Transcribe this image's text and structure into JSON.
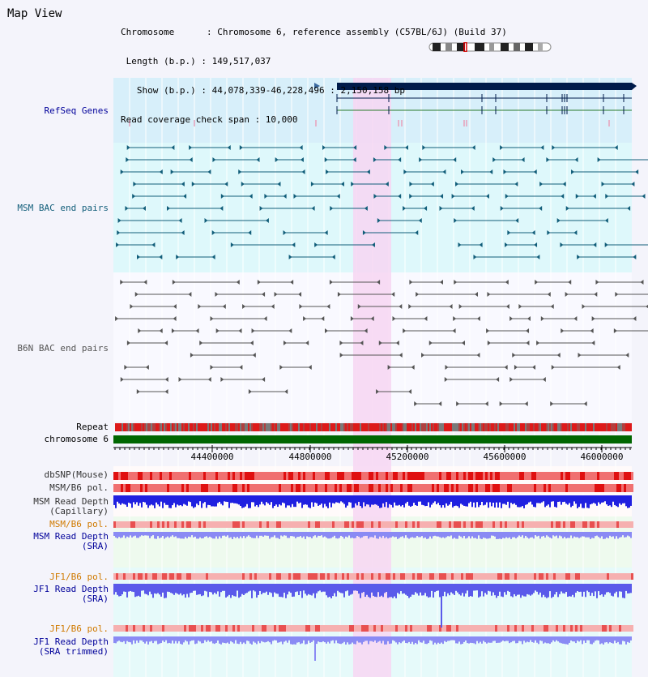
{
  "view_title": "Map View",
  "info": {
    "lines": [
      "Chromosome      : Chromosome 6, reference assembly (C57BL/6J) (Build 37)",
      " Length (b.p.) : 149,517,037",
      "   Show (b.p.) : 44,078,339-46,228,496 : 2,150,158 bp",
      "Read coverage check span : 10,000"
    ]
  },
  "tracks": {
    "refseq": "RefSeq Genes",
    "msm_bac": "MSM BAC end pairs",
    "b6n_bac": "B6N BAC end pairs",
    "repeat": "Repeat",
    "chromosome": "chromosome 6",
    "dbsnp": "dbSNP(Mouse)",
    "msm_pol_1": "MSM/B6 pol.",
    "msm_depth_cap_1": "MSM Read Depth",
    "msm_depth_cap_2": "(Capillary)",
    "msm_pol_2": "MSM/B6 pol.",
    "msm_depth_sra_1": "MSM Read Depth",
    "msm_depth_sra_2": "(SRA)",
    "jf1_pol_1": "JF1/B6 pol.",
    "jf1_depth_sra_1": "JF1 Read Depth",
    "jf1_depth_sra_2": "(SRA)",
    "jf1_pol_2": "JF1/B6 pol.",
    "jf1_depth_trim_1": "JF1 Read Depth",
    "jf1_depth_trim_2": "(SRA trimmed)"
  },
  "axis": {
    "ticks": [
      "44400000",
      "44800000",
      "45200000",
      "45600000",
      "46000000"
    ]
  },
  "colors": {
    "highlight": "#f7d6f2",
    "refseq_bg": "#d7effa",
    "msm_bg": "#def8fb",
    "gene_dark": "#001b4a",
    "bac_msm": "#125e7a",
    "bac_b6n": "#555555",
    "chrom_green": "#006600",
    "depth_blue": "#2020e0",
    "depth_light": "#8a8af4",
    "snp_red": "#e82020"
  }
}
